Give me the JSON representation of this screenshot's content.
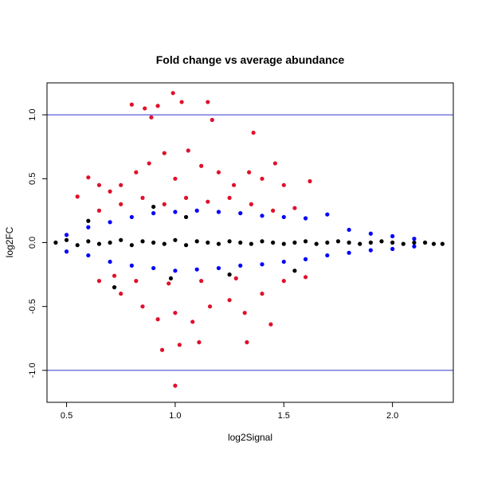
{
  "chart_data": {
    "type": "scatter",
    "title": "Fold change vs average abundance",
    "xlabel": "log2Signal",
    "ylabel": "log2FC",
    "xlim": [
      0.41,
      2.28
    ],
    "ylim": [
      -1.25,
      1.25
    ],
    "xticks": [
      0.5,
      1.0,
      1.5,
      2.0
    ],
    "yticks": [
      -1.0,
      -0.5,
      0.0,
      0.5,
      1.0
    ],
    "xtick_labels": [
      "0.5",
      "1.0",
      "1.5",
      "2.0"
    ],
    "ytick_labels": [
      "-1.0",
      "-0.5",
      "0.0",
      "0.5",
      "1.0"
    ],
    "hlines": [
      1.0,
      -1.0
    ],
    "grid": false,
    "colors": {
      "black": "#000000",
      "blue": "#0000ff",
      "red": "#e0102a",
      "refline": "#3030d0"
    },
    "series": [
      {
        "color": "#000000",
        "points": [
          [
            0.45,
            0.0
          ],
          [
            0.5,
            0.02
          ],
          [
            0.55,
            -0.02
          ],
          [
            0.6,
            0.01
          ],
          [
            0.65,
            -0.01
          ],
          [
            0.7,
            0.0
          ],
          [
            0.75,
            0.02
          ],
          [
            0.8,
            -0.02
          ],
          [
            0.85,
            0.01
          ],
          [
            0.9,
            0.0
          ],
          [
            0.95,
            -0.01
          ],
          [
            1.0,
            0.02
          ],
          [
            1.05,
            -0.02
          ],
          [
            1.1,
            0.01
          ],
          [
            1.15,
            0.0
          ],
          [
            1.2,
            -0.01
          ],
          [
            1.25,
            0.01
          ],
          [
            1.3,
            0.0
          ],
          [
            1.35,
            -0.01
          ],
          [
            1.4,
            0.01
          ],
          [
            1.45,
            0.0
          ],
          [
            1.5,
            -0.01
          ],
          [
            1.55,
            0.0
          ],
          [
            1.6,
            0.01
          ],
          [
            1.65,
            -0.01
          ],
          [
            1.7,
            0.0
          ],
          [
            1.75,
            0.01
          ],
          [
            1.8,
            0.0
          ],
          [
            1.85,
            -0.01
          ],
          [
            1.9,
            0.0
          ],
          [
            1.95,
            0.01
          ],
          [
            2.0,
            0.0
          ],
          [
            2.05,
            -0.01
          ],
          [
            2.1,
            0.0
          ],
          [
            2.15,
            0.0
          ],
          [
            2.19,
            -0.01
          ],
          [
            2.23,
            -0.01
          ],
          [
            0.6,
            0.17
          ],
          [
            0.72,
            -0.35
          ],
          [
            0.9,
            0.28
          ],
          [
            0.98,
            -0.28
          ],
          [
            1.05,
            0.2
          ],
          [
            1.25,
            -0.25
          ],
          [
            1.55,
            -0.22
          ]
        ]
      },
      {
        "color": "#0000ff",
        "points": [
          [
            0.5,
            0.06
          ],
          [
            0.5,
            -0.07
          ],
          [
            0.6,
            0.12
          ],
          [
            0.6,
            -0.1
          ],
          [
            0.7,
            0.16
          ],
          [
            0.7,
            -0.15
          ],
          [
            0.8,
            0.2
          ],
          [
            0.8,
            -0.18
          ],
          [
            0.9,
            0.23
          ],
          [
            0.9,
            -0.2
          ],
          [
            1.0,
            0.24
          ],
          [
            1.0,
            -0.22
          ],
          [
            1.1,
            0.25
          ],
          [
            1.1,
            -0.21
          ],
          [
            1.2,
            0.24
          ],
          [
            1.2,
            -0.2
          ],
          [
            1.3,
            0.23
          ],
          [
            1.3,
            -0.18
          ],
          [
            1.4,
            0.21
          ],
          [
            1.4,
            -0.17
          ],
          [
            1.5,
            0.2
          ],
          [
            1.5,
            -0.15
          ],
          [
            1.6,
            0.19
          ],
          [
            1.6,
            -0.13
          ],
          [
            1.7,
            0.22
          ],
          [
            1.7,
            -0.1
          ],
          [
            1.8,
            0.1
          ],
          [
            1.8,
            -0.08
          ],
          [
            1.9,
            0.07
          ],
          [
            1.9,
            -0.06
          ],
          [
            2.0,
            0.05
          ],
          [
            2.0,
            -0.05
          ],
          [
            2.1,
            0.03
          ],
          [
            2.1,
            -0.03
          ]
        ]
      },
      {
        "color": "#e0102a",
        "points": [
          [
            0.8,
            1.08
          ],
          [
            0.86,
            1.05
          ],
          [
            0.89,
            0.98
          ],
          [
            0.92,
            1.07
          ],
          [
            0.99,
            1.17
          ],
          [
            1.03,
            1.1
          ],
          [
            1.15,
            1.1
          ],
          [
            1.17,
            0.96
          ],
          [
            1.36,
            0.86
          ],
          [
            1.62,
            0.48
          ],
          [
            0.6,
            0.51
          ],
          [
            0.65,
            0.45
          ],
          [
            0.7,
            0.4
          ],
          [
            0.75,
            0.45
          ],
          [
            0.82,
            0.55
          ],
          [
            0.88,
            0.62
          ],
          [
            0.95,
            0.7
          ],
          [
            1.0,
            0.5
          ],
          [
            1.06,
            0.72
          ],
          [
            1.12,
            0.6
          ],
          [
            1.2,
            0.55
          ],
          [
            1.27,
            0.45
          ],
          [
            1.34,
            0.55
          ],
          [
            1.4,
            0.5
          ],
          [
            1.46,
            0.62
          ],
          [
            1.5,
            0.45
          ],
          [
            0.55,
            0.36
          ],
          [
            0.65,
            0.25
          ],
          [
            0.75,
            0.3
          ],
          [
            0.85,
            0.35
          ],
          [
            0.95,
            0.3
          ],
          [
            1.05,
            0.35
          ],
          [
            1.15,
            0.32
          ],
          [
            1.25,
            0.35
          ],
          [
            1.35,
            0.3
          ],
          [
            1.45,
            0.25
          ],
          [
            1.55,
            0.27
          ],
          [
            1.0,
            -1.12
          ],
          [
            0.94,
            -0.84
          ],
          [
            1.02,
            -0.8
          ],
          [
            1.11,
            -0.78
          ],
          [
            1.33,
            -0.78
          ],
          [
            1.44,
            -0.64
          ],
          [
            0.65,
            -0.3
          ],
          [
            0.75,
            -0.4
          ],
          [
            0.85,
            -0.5
          ],
          [
            0.92,
            -0.6
          ],
          [
            1.0,
            -0.55
          ],
          [
            1.08,
            -0.62
          ],
          [
            1.16,
            -0.5
          ],
          [
            1.25,
            -0.45
          ],
          [
            1.32,
            -0.55
          ],
          [
            1.4,
            -0.4
          ],
          [
            1.5,
            -0.3
          ],
          [
            1.6,
            -0.27
          ],
          [
            0.72,
            -0.26
          ],
          [
            0.82,
            -0.3
          ],
          [
            0.97,
            -0.32
          ],
          [
            1.12,
            -0.3
          ],
          [
            1.28,
            -0.28
          ]
        ]
      }
    ]
  }
}
